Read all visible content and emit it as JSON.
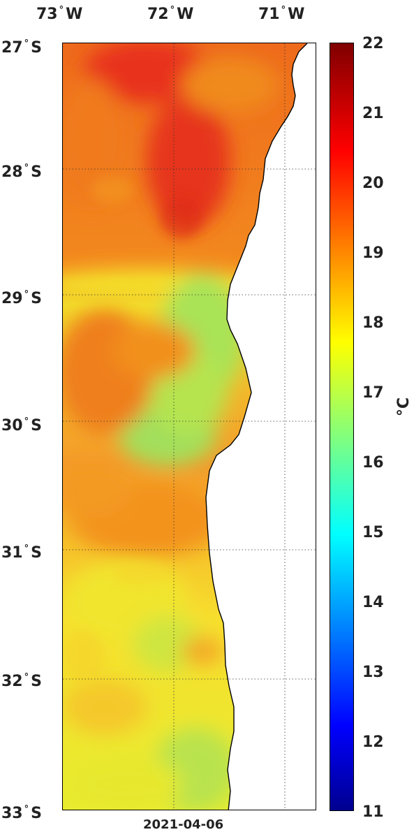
{
  "lon_labels": [
    {
      "deg": "73",
      "dir": "W"
    },
    {
      "deg": "72",
      "dir": "W"
    },
    {
      "deg": "71",
      "dir": "W"
    }
  ],
  "lat_labels": [
    {
      "deg": "27",
      "dir": "S"
    },
    {
      "deg": "28",
      "dir": "S"
    },
    {
      "deg": "29",
      "dir": "S"
    },
    {
      "deg": "30",
      "dir": "S"
    },
    {
      "deg": "31",
      "dir": "S"
    },
    {
      "deg": "32",
      "dir": "S"
    },
    {
      "deg": "33",
      "dir": "S"
    }
  ],
  "degree_symbol": "°",
  "colorbar": {
    "ticks": [
      "22",
      "21",
      "20",
      "19",
      "18",
      "17",
      "16",
      "15",
      "14",
      "13",
      "12",
      "11"
    ],
    "unit": "°C",
    "min": 11,
    "max": 22
  },
  "date": "2021-04-06",
  "colors": {
    "ocean_warm": "#e8401a",
    "ocean_mid": "#f6c51e",
    "ocean_cool": "#9ee05a",
    "land": "#ffffff",
    "coastline": "#000000"
  }
}
